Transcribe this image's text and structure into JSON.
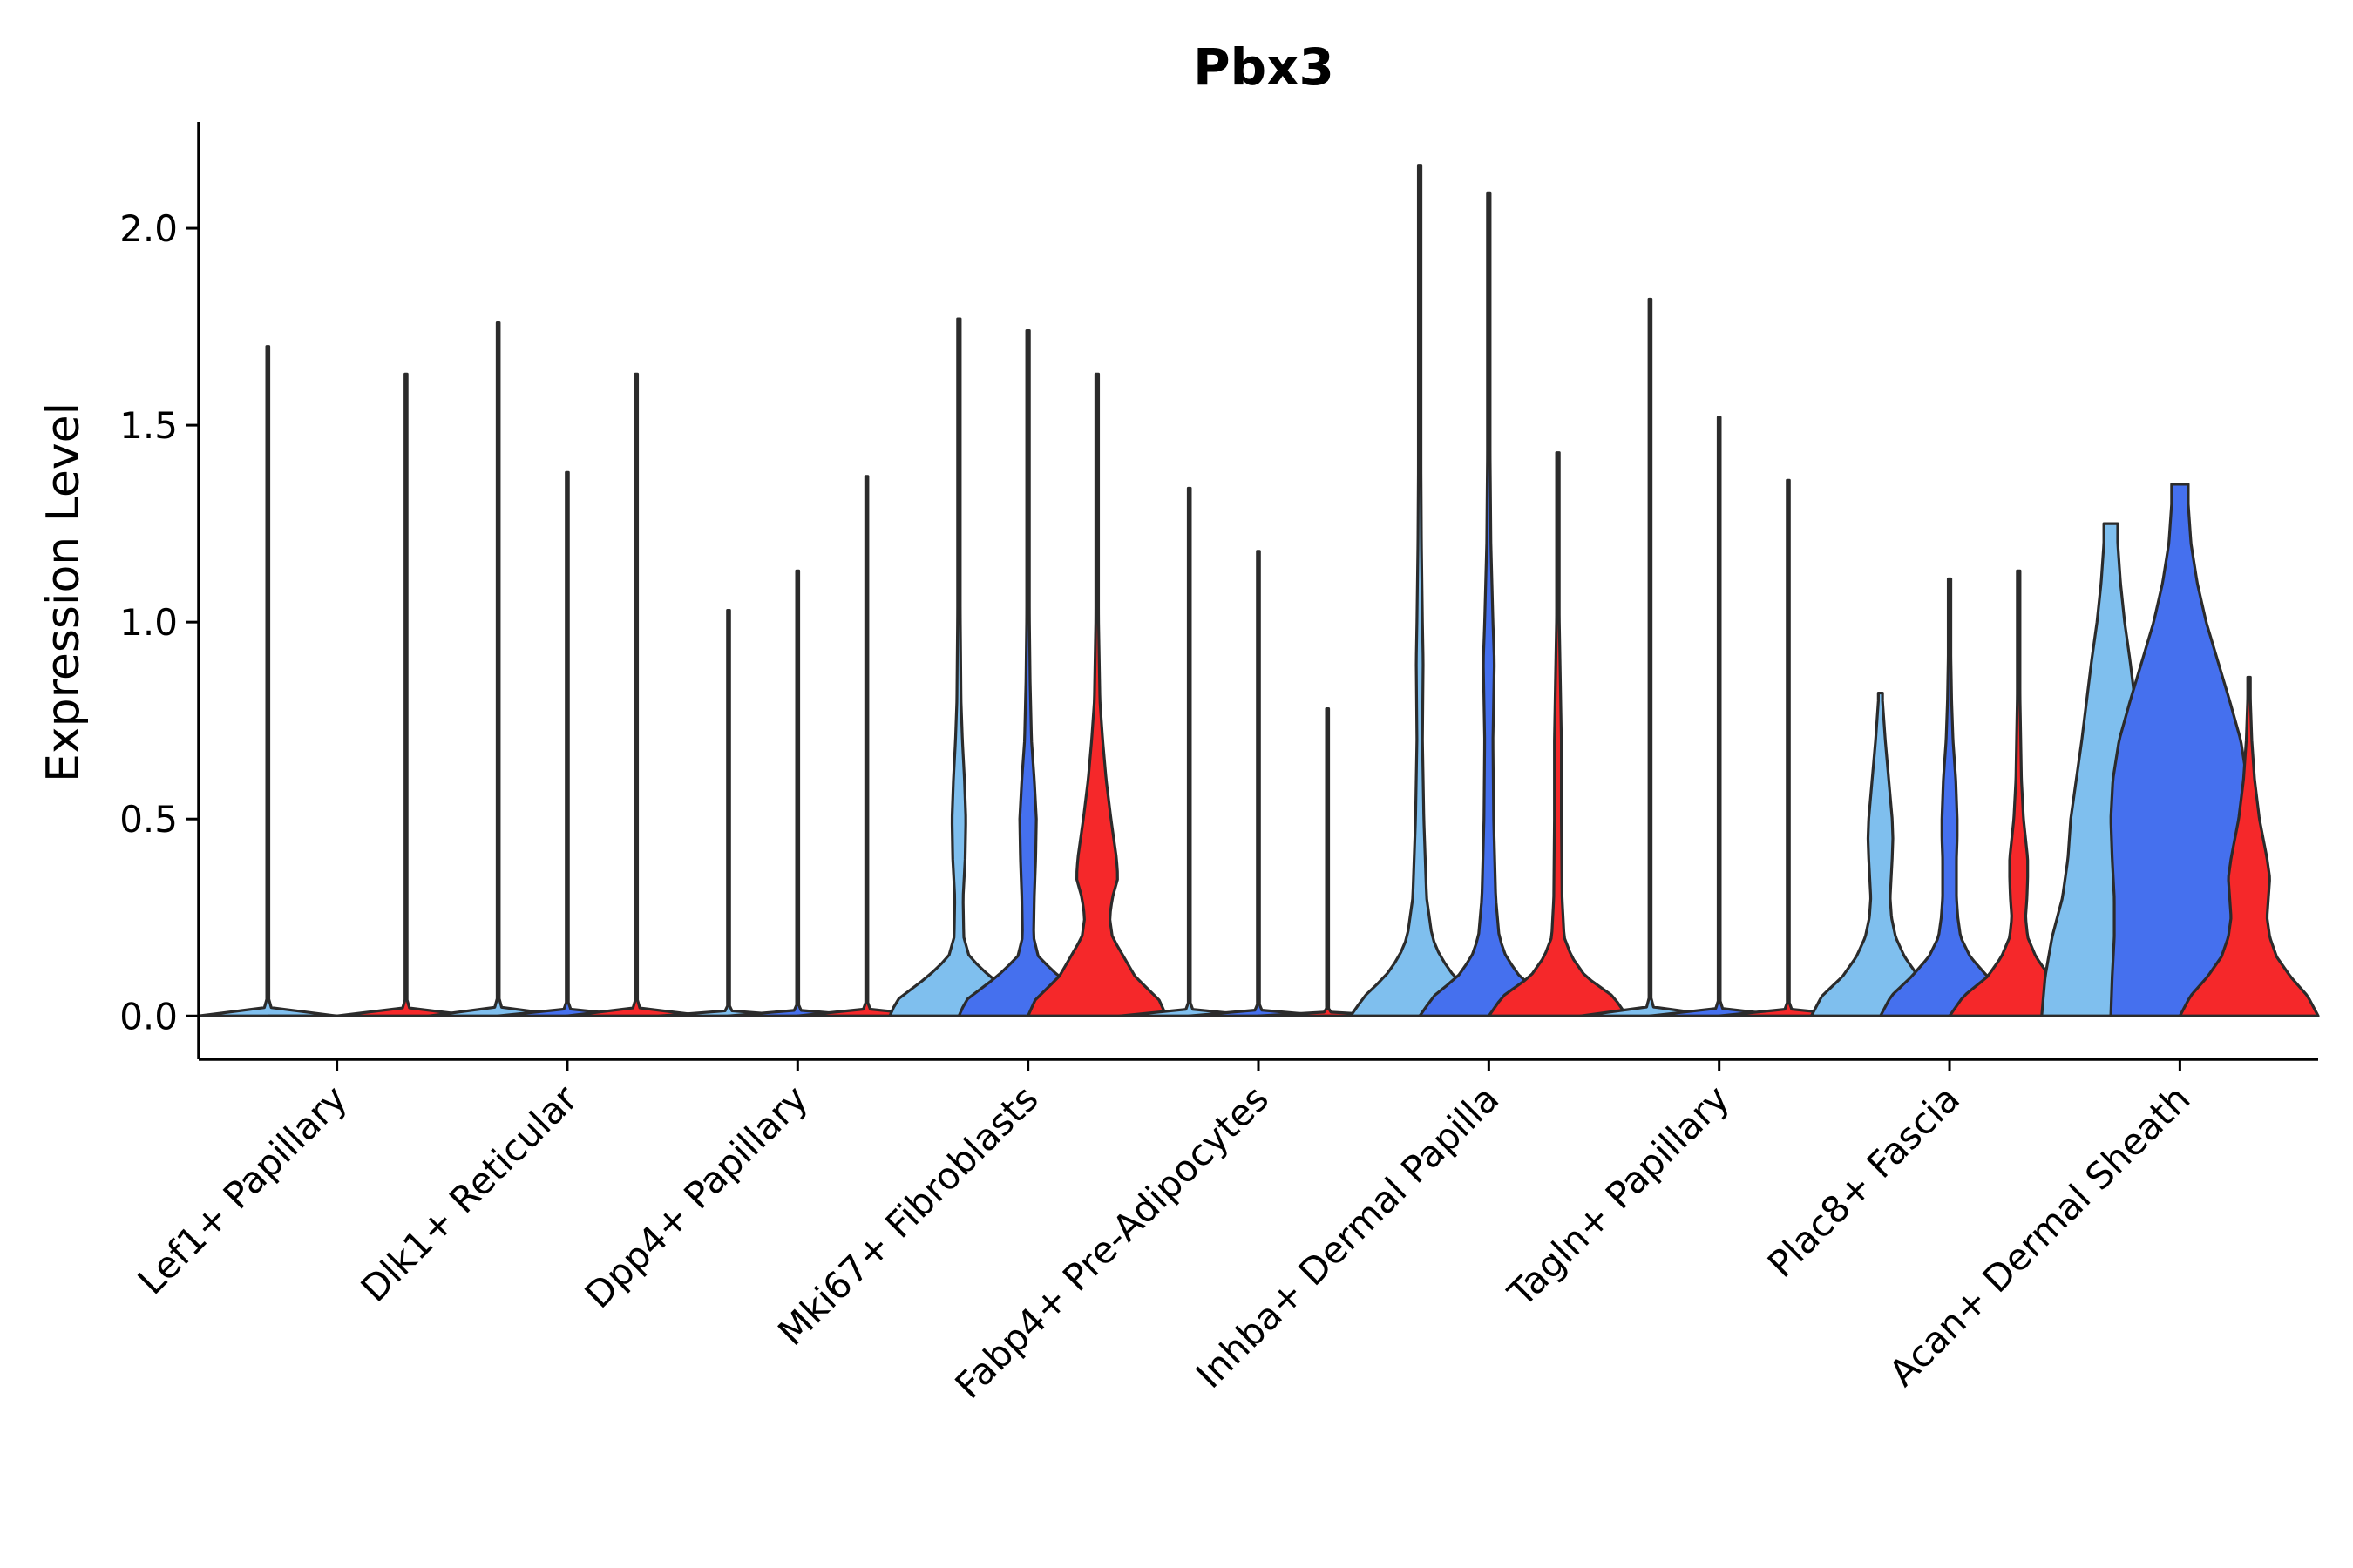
{
  "chart_data": {
    "type": "violin",
    "title": "Pbx3",
    "xlabel": "",
    "ylabel": "Expression Level",
    "ylim": [
      -0.11,
      2.27
    ],
    "yticks": [
      "0.0",
      "0.5",
      "1.0",
      "1.5",
      "2.0"
    ],
    "ytick_values": [
      0.0,
      0.5,
      1.0,
      1.5,
      2.0
    ],
    "series_colors": [
      "#7fbfee",
      "#4570ee",
      "#f5282a"
    ],
    "categories": [
      "Lef1+ Papillary",
      "Dlk1+ Reticular",
      "Dpp4+ Papillary",
      "Mki67+ Fibroblasts",
      "Fabp4+ Pre-Adipocytes",
      "Inhba+ Dermal Papilla",
      "Tagln+ Papillary",
      "Plac8+ Fascia",
      "Acan+ Dermal Sheath"
    ],
    "violins": [
      [
        {
          "max": 1.7,
          "w": 0.003,
          "p": [
            [
              0,
              1
            ],
            [
              0.1,
              0.01
            ]
          ]
        },
        {
          "max": 0.0,
          "w": 0.0,
          "p": [
            [
              0,
              1
            ]
          ]
        },
        {
          "max": 1.63,
          "w": 0.003,
          "p": [
            [
              0,
              1
            ],
            [
              0.1,
              0.01
            ]
          ]
        }
      ],
      [
        {
          "max": 1.76,
          "w": 0.003,
          "p": [
            [
              0,
              1
            ],
            [
              0.1,
              0.01
            ]
          ]
        },
        {
          "max": 1.38,
          "w": 0.002,
          "p": [
            [
              0,
              1
            ],
            [
              0.1,
              0.01
            ]
          ]
        },
        {
          "max": 1.63,
          "w": 0.002,
          "p": [
            [
              0,
              1
            ],
            [
              0.1,
              0.01
            ]
          ]
        }
      ],
      [
        {
          "max": 1.03,
          "w": 0.002,
          "p": [
            [
              0,
              1
            ],
            [
              0.1,
              0.01
            ]
          ]
        },
        {
          "max": 1.13,
          "w": 0.002,
          "p": [
            [
              0,
              1
            ],
            [
              0.1,
              0.01
            ]
          ]
        },
        {
          "max": 1.37,
          "w": 0.002,
          "p": [
            [
              0,
              1
            ],
            [
              0.1,
              0.01
            ]
          ]
        }
      ],
      [
        {
          "max": 1.77,
          "w": 0.048,
          "p": [
            [
              0,
              1
            ],
            [
              0.04,
              0.9
            ],
            [
              0.1,
              0.45
            ],
            [
              0.15,
              0.15
            ],
            [
              0.2,
              0.07
            ],
            [
              0.3,
              0.06
            ],
            [
              0.4,
              0.09
            ],
            [
              0.5,
              0.1
            ],
            [
              0.6,
              0.08
            ],
            [
              0.7,
              0.05
            ],
            [
              0.8,
              0.03
            ],
            [
              1.0,
              0.02
            ],
            [
              1.3,
              0.01
            ],
            [
              1.77,
              0.005
            ]
          ]
        },
        {
          "max": 1.74,
          "w": 0.048,
          "p": [
            [
              0,
              1
            ],
            [
              0.04,
              0.9
            ],
            [
              0.1,
              0.45
            ],
            [
              0.15,
              0.15
            ],
            [
              0.2,
              0.08
            ],
            [
              0.3,
              0.09
            ],
            [
              0.4,
              0.11
            ],
            [
              0.5,
              0.12
            ],
            [
              0.6,
              0.09
            ],
            [
              0.7,
              0.05
            ],
            [
              0.85,
              0.03
            ],
            [
              1.0,
              0.02
            ],
            [
              1.3,
              0.01
            ],
            [
              1.74,
              0.005
            ]
          ]
        },
        {
          "max": 1.63,
          "w": 0.048,
          "p": [
            [
              0,
              1
            ],
            [
              0.04,
              0.9
            ],
            [
              0.1,
              0.55
            ],
            [
              0.2,
              0.22
            ],
            [
              0.25,
              0.18
            ],
            [
              0.3,
              0.22
            ],
            [
              0.35,
              0.3
            ],
            [
              0.4,
              0.28
            ],
            [
              0.5,
              0.2
            ],
            [
              0.6,
              0.13
            ],
            [
              0.7,
              0.08
            ],
            [
              0.8,
              0.04
            ],
            [
              1.0,
              0.02
            ],
            [
              1.3,
              0.01
            ],
            [
              1.63,
              0.005
            ]
          ]
        }
      ],
      [
        {
          "max": 1.34,
          "w": 0.002,
          "p": [
            [
              0,
              1
            ],
            [
              0.1,
              0.01
            ]
          ]
        },
        {
          "max": 1.18,
          "w": 0.002,
          "p": [
            [
              0,
              1
            ],
            [
              0.1,
              0.01
            ]
          ]
        },
        {
          "max": 0.78,
          "w": 0.002,
          "p": [
            [
              0,
              1
            ],
            [
              0.1,
              0.01
            ]
          ]
        }
      ],
      [
        {
          "max": 2.16,
          "w": 0.048,
          "p": [
            [
              0,
              1
            ],
            [
              0.05,
              0.8
            ],
            [
              0.1,
              0.5
            ],
            [
              0.15,
              0.3
            ],
            [
              0.2,
              0.18
            ],
            [
              0.3,
              0.1
            ],
            [
              0.5,
              0.06
            ],
            [
              0.7,
              0.04
            ],
            [
              0.9,
              0.05
            ],
            [
              1.0,
              0.04
            ],
            [
              1.2,
              0.025
            ],
            [
              1.5,
              0.015
            ],
            [
              1.8,
              0.01
            ],
            [
              2.16,
              0.005
            ]
          ]
        },
        {
          "max": 2.09,
          "w": 0.048,
          "p": [
            [
              0,
              1
            ],
            [
              0.05,
              0.8
            ],
            [
              0.1,
              0.45
            ],
            [
              0.15,
              0.25
            ],
            [
              0.2,
              0.15
            ],
            [
              0.3,
              0.1
            ],
            [
              0.5,
              0.07
            ],
            [
              0.7,
              0.06
            ],
            [
              0.9,
              0.08
            ],
            [
              1.0,
              0.06
            ],
            [
              1.2,
              0.03
            ],
            [
              1.5,
              0.015
            ],
            [
              1.8,
              0.01
            ],
            [
              2.09,
              0.005
            ]
          ]
        },
        {
          "max": 1.43,
          "w": 0.048,
          "p": [
            [
              0,
              1
            ],
            [
              0.05,
              0.8
            ],
            [
              0.1,
              0.4
            ],
            [
              0.15,
              0.2
            ],
            [
              0.2,
              0.09
            ],
            [
              0.3,
              0.06
            ],
            [
              0.5,
              0.05
            ],
            [
              0.7,
              0.05
            ],
            [
              0.8,
              0.04
            ],
            [
              1.0,
              0.02
            ],
            [
              1.2,
              0.01
            ],
            [
              1.43,
              0.005
            ]
          ]
        }
      ],
      [
        {
          "max": 1.82,
          "w": 0.002,
          "p": [
            [
              0,
              1
            ],
            [
              0.1,
              0.01
            ]
          ]
        },
        {
          "max": 1.52,
          "w": 0.002,
          "p": [
            [
              0,
              1
            ],
            [
              0.1,
              0.01
            ]
          ]
        },
        {
          "max": 1.36,
          "w": 0.002,
          "p": [
            [
              0,
              1
            ],
            [
              0.1,
              0.01
            ]
          ]
        }
      ],
      [
        {
          "max": 0.82,
          "w": 0.048,
          "p": [
            [
              0,
              1
            ],
            [
              0.05,
              0.85
            ],
            [
              0.1,
              0.55
            ],
            [
              0.15,
              0.35
            ],
            [
              0.2,
              0.22
            ],
            [
              0.25,
              0.16
            ],
            [
              0.3,
              0.14
            ],
            [
              0.4,
              0.17
            ],
            [
              0.45,
              0.18
            ],
            [
              0.5,
              0.17
            ],
            [
              0.6,
              0.12
            ],
            [
              0.7,
              0.07
            ],
            [
              0.8,
              0.03
            ],
            [
              0.82,
              0.03
            ]
          ]
        },
        {
          "max": 1.11,
          "w": 0.048,
          "p": [
            [
              0,
              1
            ],
            [
              0.05,
              0.85
            ],
            [
              0.1,
              0.55
            ],
            [
              0.15,
              0.3
            ],
            [
              0.2,
              0.16
            ],
            [
              0.25,
              0.12
            ],
            [
              0.3,
              0.1
            ],
            [
              0.4,
              0.1
            ],
            [
              0.45,
              0.11
            ],
            [
              0.5,
              0.11
            ],
            [
              0.6,
              0.09
            ],
            [
              0.7,
              0.05
            ],
            [
              0.8,
              0.03
            ],
            [
              1.0,
              0.01
            ],
            [
              1.11,
              0.005
            ]
          ]
        },
        {
          "max": 1.13,
          "w": 0.048,
          "p": [
            [
              0,
              1
            ],
            [
              0.05,
              0.8
            ],
            [
              0.1,
              0.45
            ],
            [
              0.15,
              0.25
            ],
            [
              0.2,
              0.13
            ],
            [
              0.25,
              0.1
            ],
            [
              0.3,
              0.12
            ],
            [
              0.35,
              0.13
            ],
            [
              0.4,
              0.13
            ],
            [
              0.45,
              0.1
            ],
            [
              0.5,
              0.07
            ],
            [
              0.6,
              0.04
            ],
            [
              0.8,
              0.02
            ],
            [
              1.0,
              0.01
            ],
            [
              1.13,
              0.005
            ]
          ]
        }
      ],
      [
        {
          "max": 1.25,
          "w": 0.048,
          "p": [
            [
              0,
              1
            ],
            [
              0.1,
              0.95
            ],
            [
              0.2,
              0.85
            ],
            [
              0.3,
              0.7
            ],
            [
              0.4,
              0.62
            ],
            [
              0.5,
              0.58
            ],
            [
              0.6,
              0.5
            ],
            [
              0.7,
              0.42
            ],
            [
              0.8,
              0.35
            ],
            [
              0.9,
              0.28
            ],
            [
              1.0,
              0.2
            ],
            [
              1.1,
              0.14
            ],
            [
              1.2,
              0.1
            ],
            [
              1.25,
              0.1
            ]
          ]
        },
        {
          "max": 1.35,
          "w": 0.048,
          "p": [
            [
              0,
              1
            ],
            [
              0.1,
              0.98
            ],
            [
              0.2,
              0.95
            ],
            [
              0.3,
              0.95
            ],
            [
              0.4,
              0.98
            ],
            [
              0.5,
              1.0
            ],
            [
              0.6,
              0.97
            ],
            [
              0.7,
              0.88
            ],
            [
              0.8,
              0.72
            ],
            [
              0.9,
              0.55
            ],
            [
              1.0,
              0.38
            ],
            [
              1.1,
              0.25
            ],
            [
              1.2,
              0.16
            ],
            [
              1.3,
              0.12
            ],
            [
              1.35,
              0.12
            ]
          ]
        },
        {
          "max": 0.86,
          "w": 0.048,
          "p": [
            [
              0,
              1
            ],
            [
              0.05,
              0.85
            ],
            [
              0.1,
              0.6
            ],
            [
              0.15,
              0.4
            ],
            [
              0.2,
              0.3
            ],
            [
              0.25,
              0.26
            ],
            [
              0.3,
              0.28
            ],
            [
              0.35,
              0.3
            ],
            [
              0.4,
              0.26
            ],
            [
              0.5,
              0.15
            ],
            [
              0.6,
              0.08
            ],
            [
              0.7,
              0.04
            ],
            [
              0.8,
              0.02
            ],
            [
              0.86,
              0.015
            ]
          ]
        }
      ]
    ]
  }
}
